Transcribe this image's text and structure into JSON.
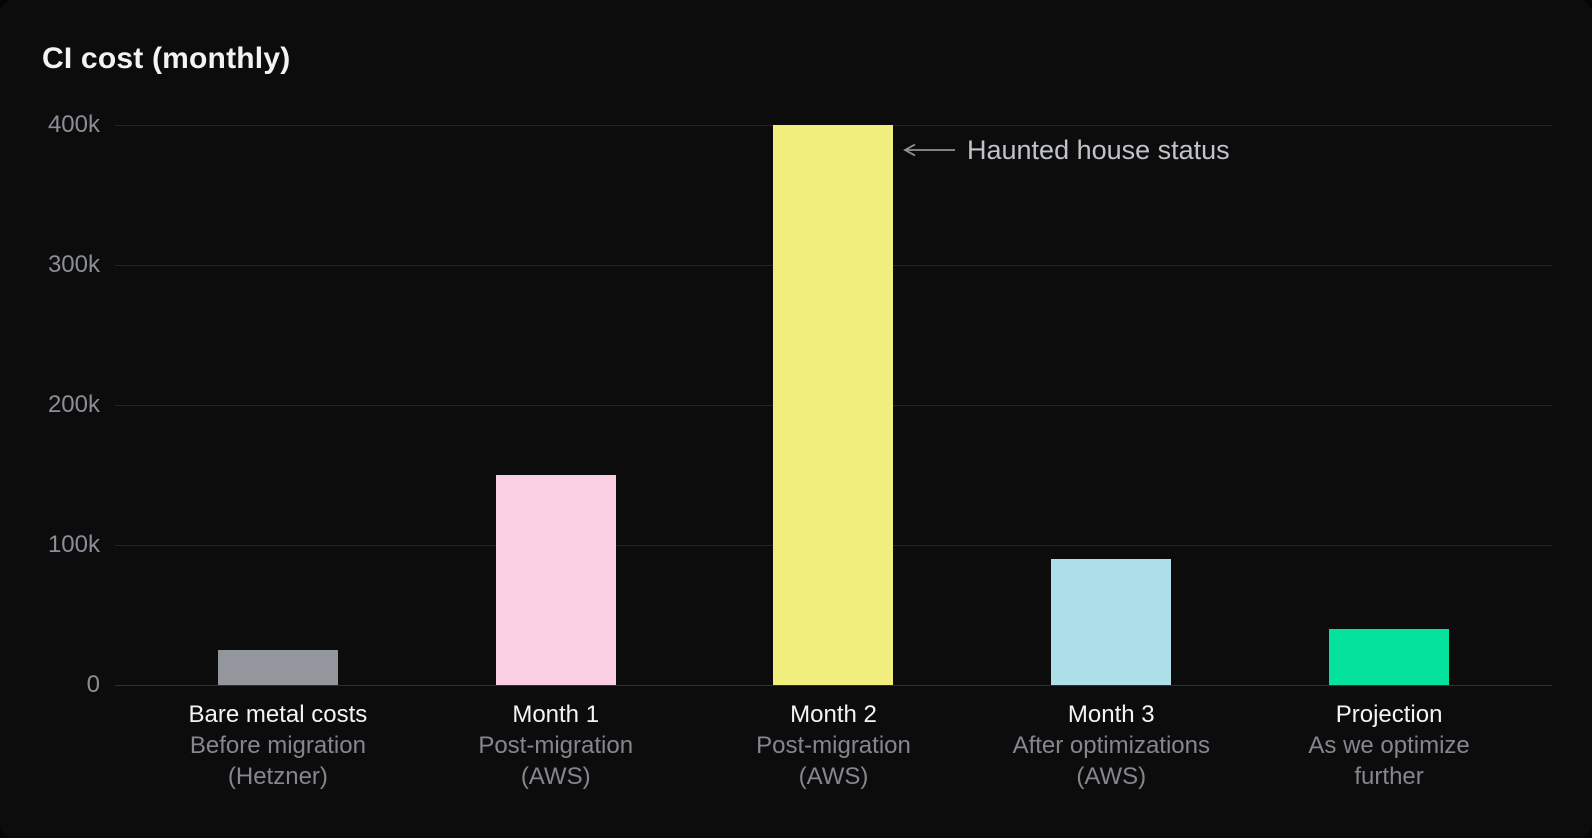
{
  "title": "CI cost (monthly)",
  "annotation": {
    "text": "Haunted house status"
  },
  "y_axis": {
    "tick_labels_top_down": [
      "400k",
      "300k",
      "200k",
      "100k",
      "0"
    ]
  },
  "chart_data": {
    "type": "bar",
    "title": "CI cost (monthly)",
    "categories": [
      "Bare metal costs",
      "Month 1",
      "Month 2",
      "Month 3",
      "Projection"
    ],
    "category_sublabels": [
      [
        "Before migration",
        "(Hetzner)"
      ],
      [
        "Post-migration",
        "(AWS)"
      ],
      [
        "Post-migration",
        "(AWS)"
      ],
      [
        "After optimizations",
        "(AWS)"
      ],
      [
        "As we optimize",
        "further"
      ]
    ],
    "values": [
      25000,
      150000,
      400000,
      90000,
      40000
    ],
    "bar_colors": [
      "#94969d",
      "#fbcfe3",
      "#f1ee7e",
      "#aedeea",
      "#05e29d"
    ],
    "ylim": [
      0,
      400000
    ],
    "y_tick_labels": [
      "0",
      "100k",
      "200k",
      "300k",
      "400k"
    ],
    "xlabel": "",
    "ylabel": "",
    "grid": true,
    "legend": false,
    "annotations": [
      {
        "text": "Haunted house status",
        "points_to": "Month 2",
        "arrow_direction": "left"
      }
    ]
  },
  "colors": {
    "background": "#0c0c0d",
    "title_text": "#f2f3f5",
    "axis_tick_text": "#8b8e96",
    "gridline": "#222226",
    "baseline": "#2e2e33",
    "category_label": "#f3f4f6",
    "category_sublabel": "#85878e",
    "annotation_text": "#c0c3c8",
    "annotation_arrow": "#8f9298"
  }
}
